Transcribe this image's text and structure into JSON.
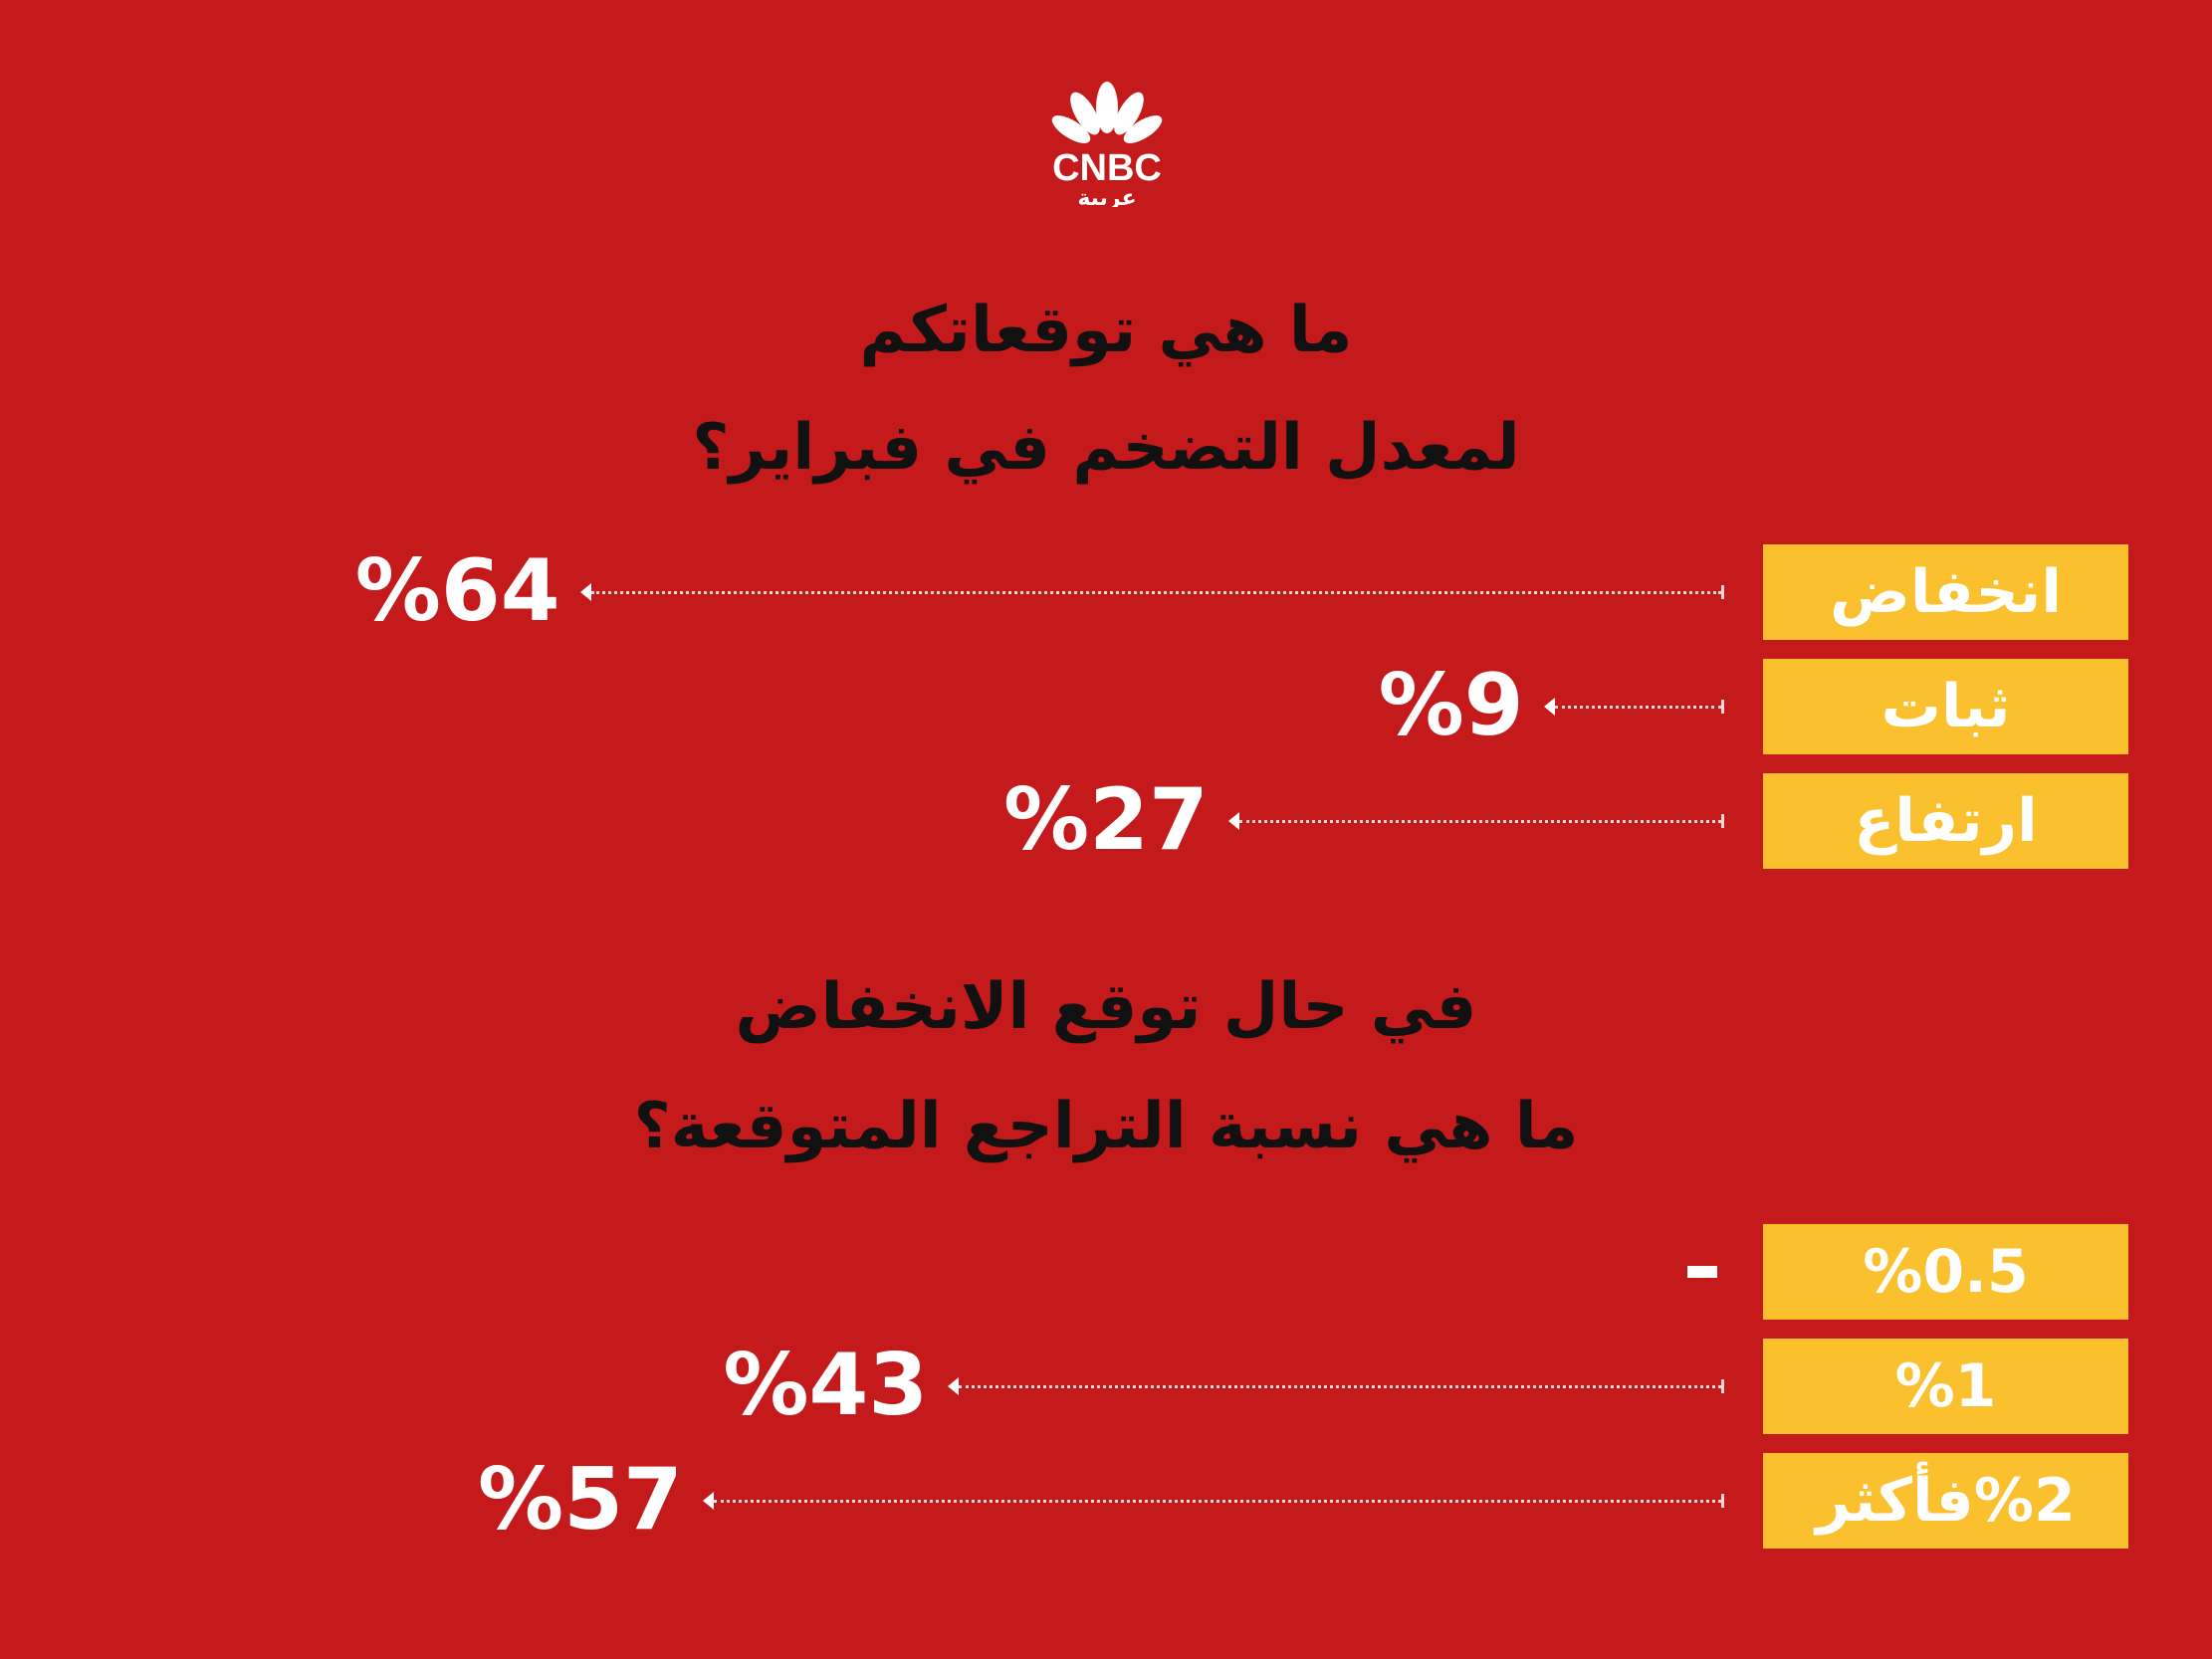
{
  "brand": {
    "logo": "CNBC عربية",
    "name": "CNBC",
    "sub": "عربية"
  },
  "colors": {
    "background": "#c41a1b",
    "box": "#fbc02d",
    "text": "#ffffff",
    "title": "#111111"
  },
  "chart_data": [
    {
      "type": "bar",
      "title_lines": [
        "ما هي توقعاتكم",
        "لمعدل التضخم في فبراير؟"
      ],
      "categories": [
        "انخفاض",
        "ثبات",
        "ارتفاع"
      ],
      "values": [
        64,
        9,
        27
      ],
      "value_labels": [
        "%64",
        "%9",
        "%27"
      ],
      "unit": "%"
    },
    {
      "type": "bar",
      "title_lines": [
        "في حال توقع الانخفاض",
        "ما هي نسبة التراجع المتوقعة؟"
      ],
      "categories": [
        "%0.5",
        "%1",
        "%2فأكثر"
      ],
      "values": [
        null,
        43,
        57
      ],
      "value_labels": [
        "-",
        "%43",
        "%57"
      ],
      "unit": "%"
    }
  ]
}
